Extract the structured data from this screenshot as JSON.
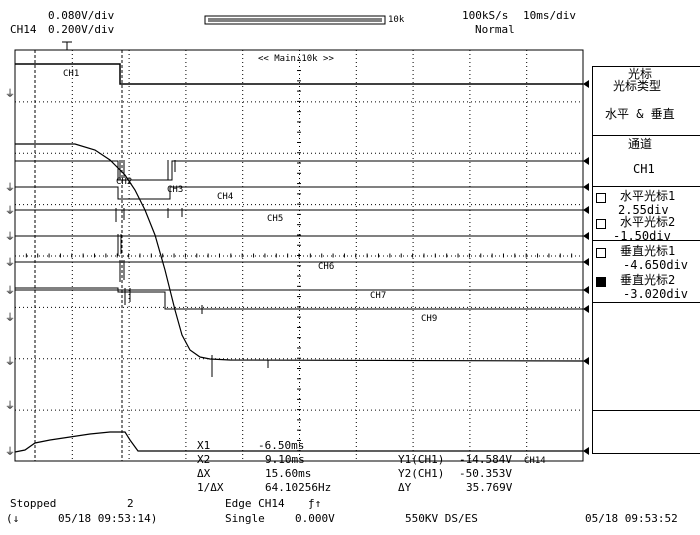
{
  "header": {
    "ch_top_scale": "0.080V/div",
    "ch14_label": "CH14",
    "ch14_scale": "0.200V/div",
    "memory_label": "10k",
    "sample_rate": "100kS/s",
    "timebase": "10ms/div",
    "trigger_mode": "Normal"
  },
  "zoom_label": "<< Main:10k >>",
  "traces": {
    "ch1": "CH1",
    "ch2": "CH2",
    "ch3": "CH3",
    "ch4": "CH4",
    "ch5": "CH5",
    "ch6": "CH6",
    "ch7": "CH7",
    "ch9": "CH9",
    "ch14": "CH14"
  },
  "side_menu": {
    "title": "光标",
    "cursor_type_label": "光标类型",
    "cursor_type_value": "水平 & 垂直",
    "channel_label": "通道",
    "channel_value": "CH1",
    "h_cursor1_label": "水平光标1",
    "h_cursor1_value": "2.55div",
    "h_cursor2_label": "水平光标2",
    "h_cursor2_value": "-1.50div",
    "v_cursor1_label": "垂直光标1",
    "v_cursor1_value": "-4.650div",
    "v_cursor2_label": "垂直光标2",
    "v_cursor2_value": "-3.020div"
  },
  "measurements": {
    "x1_label": "X1",
    "x1_value": "-6.50ms",
    "x2_label": "X2",
    "x2_value": "9.10ms",
    "dx_label": "ΔX",
    "dx_value": "15.60ms",
    "inv_dx_label": "1/ΔX",
    "inv_dx_value": "64.10256Hz",
    "y1_label": "Y1(CH1)",
    "y1_value": "-14.584V",
    "y2_label": "Y2(CH1)",
    "y2_value": "-50.353V",
    "dy_label": "ΔY",
    "dy_value": "35.769V"
  },
  "status": {
    "state": "Stopped",
    "count": "2",
    "trigger": "Edge CH14",
    "trigger_edge_symbol": "ƒ↑",
    "mode": "Single",
    "level": "0.000V",
    "record_info": "550KV DS/ES",
    "left_timestamp": "05/18 09:53:14)",
    "right_timestamp": "05/18 09:53:52",
    "left_marker": "(↓"
  },
  "colors": {
    "foreground": "#000000",
    "background": "#ffffff"
  }
}
